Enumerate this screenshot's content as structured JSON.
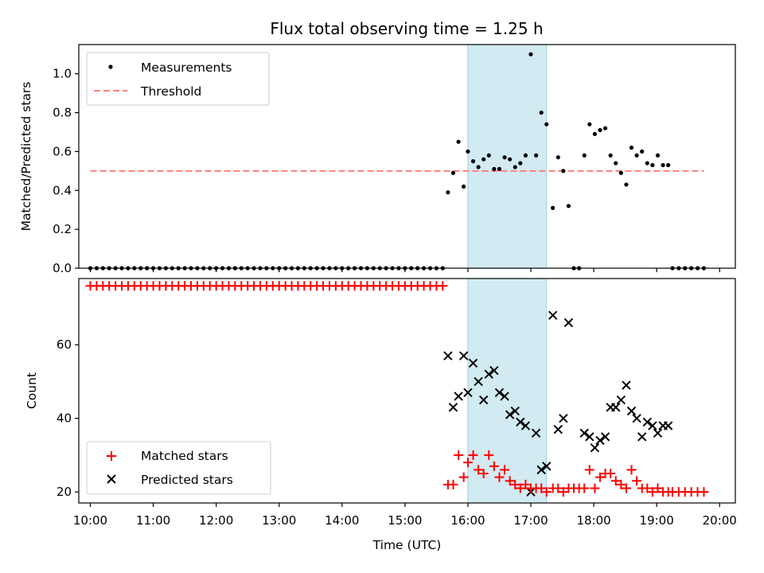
{
  "chart_data": {
    "title": "Flux total observing time = 1.25 h",
    "x_axis": {
      "label": "Time (UTC)",
      "range": [
        "09:49",
        "20:15"
      ],
      "ticks": [
        "10:00",
        "11:00",
        "12:00",
        "13:00",
        "14:00",
        "15:00",
        "16:00",
        "17:00",
        "18:00",
        "19:00",
        "20:00"
      ]
    },
    "shaded_interval": {
      "start": "16:00",
      "end": "17:15",
      "color": "#add8e6"
    },
    "panels": [
      {
        "type": "scatter",
        "ylabel": "Matched/Predicted stars",
        "ylim": [
          0,
          1.15
        ],
        "yticks": [
          "0.0",
          "0.2",
          "0.4",
          "0.6",
          "0.8",
          "1.0"
        ],
        "legend": {
          "position": "upper-left",
          "entries": [
            "Measurements",
            "Threshold"
          ]
        },
        "series": [
          {
            "name": "Measurements",
            "marker": "dot",
            "color": "#000000",
            "zero_times": [
              "10:00",
              "10:06",
              "10:12",
              "10:18",
              "10:24",
              "10:30",
              "10:36",
              "10:42",
              "10:48",
              "10:54",
              "11:00",
              "11:06",
              "11:12",
              "11:18",
              "11:24",
              "11:30",
              "11:36",
              "11:42",
              "11:48",
              "11:54",
              "12:00",
              "12:06",
              "12:12",
              "12:18",
              "12:24",
              "12:30",
              "12:36",
              "12:42",
              "12:48",
              "12:54",
              "13:00",
              "13:06",
              "13:12",
              "13:18",
              "13:24",
              "13:30",
              "13:36",
              "13:42",
              "13:48",
              "13:54",
              "14:00",
              "14:06",
              "14:12",
              "14:18",
              "14:24",
              "14:30",
              "14:36",
              "14:42",
              "14:48",
              "14:54",
              "15:00",
              "15:06",
              "15:12",
              "15:18",
              "15:24",
              "15:30",
              "15:36",
              "17:41",
              "17:46",
              "19:15",
              "19:21",
              "19:27",
              "19:33",
              "19:39",
              "19:45"
            ],
            "points": [
              {
                "x": "15:41",
                "y": 0.39
              },
              {
                "x": "15:46",
                "y": 0.49
              },
              {
                "x": "15:51",
                "y": 0.65
              },
              {
                "x": "15:56",
                "y": 0.42
              },
              {
                "x": "16:00",
                "y": 0.6
              },
              {
                "x": "16:05",
                "y": 0.55
              },
              {
                "x": "16:10",
                "y": 0.52
              },
              {
                "x": "16:15",
                "y": 0.56
              },
              {
                "x": "16:20",
                "y": 0.58
              },
              {
                "x": "16:25",
                "y": 0.51
              },
              {
                "x": "16:30",
                "y": 0.51
              },
              {
                "x": "16:35",
                "y": 0.57
              },
              {
                "x": "16:40",
                "y": 0.56
              },
              {
                "x": "16:45",
                "y": 0.52
              },
              {
                "x": "16:50",
                "y": 0.54
              },
              {
                "x": "16:55",
                "y": 0.58
              },
              {
                "x": "17:00",
                "y": 1.1
              },
              {
                "x": "17:05",
                "y": 0.58
              },
              {
                "x": "17:10",
                "y": 0.8
              },
              {
                "x": "17:15",
                "y": 0.74
              },
              {
                "x": "17:21",
                "y": 0.31
              },
              {
                "x": "17:26",
                "y": 0.57
              },
              {
                "x": "17:31",
                "y": 0.5
              },
              {
                "x": "17:36",
                "y": 0.32
              },
              {
                "x": "17:51",
                "y": 0.58
              },
              {
                "x": "17:56",
                "y": 0.74
              },
              {
                "x": "18:01",
                "y": 0.69
              },
              {
                "x": "18:06",
                "y": 0.71
              },
              {
                "x": "18:11",
                "y": 0.72
              },
              {
                "x": "18:16",
                "y": 0.58
              },
              {
                "x": "18:21",
                "y": 0.54
              },
              {
                "x": "18:26",
                "y": 0.49
              },
              {
                "x": "18:31",
                "y": 0.43
              },
              {
                "x": "18:36",
                "y": 0.62
              },
              {
                "x": "18:41",
                "y": 0.58
              },
              {
                "x": "18:46",
                "y": 0.6
              },
              {
                "x": "18:51",
                "y": 0.54
              },
              {
                "x": "18:56",
                "y": 0.53
              },
              {
                "x": "19:01",
                "y": 0.58
              },
              {
                "x": "19:06",
                "y": 0.53
              },
              {
                "x": "19:11",
                "y": 0.53
              }
            ]
          },
          {
            "name": "Threshold",
            "type": "line",
            "style": "dashed",
            "color": "#ff7f7f",
            "x": [
              "10:00",
              "19:45"
            ],
            "y": [
              0.5,
              0.5
            ]
          }
        ]
      },
      {
        "type": "scatter",
        "ylabel": "Count",
        "ylim": [
          17,
          78
        ],
        "yticks": [
          "20",
          "40",
          "60"
        ],
        "legend": {
          "position": "lower-left",
          "entries": [
            "Matched stars",
            "Predicted stars"
          ]
        },
        "series": [
          {
            "name": "Matched stars",
            "marker": "plus",
            "color": "#ff0000",
            "constant_run": {
              "y": 76,
              "times": [
                "10:00",
                "10:06",
                "10:12",
                "10:18",
                "10:24",
                "10:30",
                "10:36",
                "10:42",
                "10:48",
                "10:54",
                "11:00",
                "11:06",
                "11:12",
                "11:18",
                "11:24",
                "11:30",
                "11:36",
                "11:42",
                "11:48",
                "11:54",
                "12:00",
                "12:06",
                "12:12",
                "12:18",
                "12:24",
                "12:30",
                "12:36",
                "12:42",
                "12:48",
                "12:54",
                "13:00",
                "13:06",
                "13:12",
                "13:18",
                "13:24",
                "13:30",
                "13:36",
                "13:42",
                "13:48",
                "13:54",
                "14:00",
                "14:06",
                "14:12",
                "14:18",
                "14:24",
                "14:30",
                "14:36",
                "14:42",
                "14:48",
                "14:54",
                "15:00",
                "15:06",
                "15:12",
                "15:18",
                "15:24",
                "15:30",
                "15:36"
              ]
            },
            "points": [
              {
                "x": "15:41",
                "y": 22
              },
              {
                "x": "15:46",
                "y": 22
              },
              {
                "x": "15:51",
                "y": 30
              },
              {
                "x": "15:56",
                "y": 24
              },
              {
                "x": "16:00",
                "y": 28
              },
              {
                "x": "16:05",
                "y": 30
              },
              {
                "x": "16:10",
                "y": 26
              },
              {
                "x": "16:15",
                "y": 25
              },
              {
                "x": "16:20",
                "y": 30
              },
              {
                "x": "16:25",
                "y": 27
              },
              {
                "x": "16:30",
                "y": 24
              },
              {
                "x": "16:35",
                "y": 26
              },
              {
                "x": "16:40",
                "y": 23
              },
              {
                "x": "16:45",
                "y": 22
              },
              {
                "x": "16:50",
                "y": 21
              },
              {
                "x": "16:55",
                "y": 22
              },
              {
                "x": "17:00",
                "y": 21
              },
              {
                "x": "17:05",
                "y": 21
              },
              {
                "x": "17:10",
                "y": 21
              },
              {
                "x": "17:15",
                "y": 20
              },
              {
                "x": "17:21",
                "y": 21
              },
              {
                "x": "17:26",
                "y": 21
              },
              {
                "x": "17:31",
                "y": 20
              },
              {
                "x": "17:36",
                "y": 21
              },
              {
                "x": "17:41",
                "y": 21
              },
              {
                "x": "17:46",
                "y": 21
              },
              {
                "x": "17:51",
                "y": 21
              },
              {
                "x": "17:56",
                "y": 26
              },
              {
                "x": "18:01",
                "y": 21
              },
              {
                "x": "18:06",
                "y": 24
              },
              {
                "x": "18:11",
                "y": 25
              },
              {
                "x": "18:16",
                "y": 25
              },
              {
                "x": "18:21",
                "y": 23
              },
              {
                "x": "18:26",
                "y": 22
              },
              {
                "x": "18:31",
                "y": 21
              },
              {
                "x": "18:36",
                "y": 26
              },
              {
                "x": "18:41",
                "y": 23
              },
              {
                "x": "18:46",
                "y": 21
              },
              {
                "x": "18:51",
                "y": 21
              },
              {
                "x": "18:56",
                "y": 20
              },
              {
                "x": "19:01",
                "y": 21
              },
              {
                "x": "19:06",
                "y": 20
              },
              {
                "x": "19:11",
                "y": 20
              },
              {
                "x": "19:15",
                "y": 20
              },
              {
                "x": "19:21",
                "y": 20
              },
              {
                "x": "19:27",
                "y": 20
              },
              {
                "x": "19:33",
                "y": 20
              },
              {
                "x": "19:39",
                "y": 20
              },
              {
                "x": "19:45",
                "y": 20
              }
            ]
          },
          {
            "name": "Predicted stars",
            "marker": "x",
            "color": "#000000",
            "points": [
              {
                "x": "15:41",
                "y": 57
              },
              {
                "x": "15:46",
                "y": 43
              },
              {
                "x": "15:51",
                "y": 46
              },
              {
                "x": "15:56",
                "y": 57
              },
              {
                "x": "16:00",
                "y": 47
              },
              {
                "x": "16:05",
                "y": 55
              },
              {
                "x": "16:10",
                "y": 50
              },
              {
                "x": "16:15",
                "y": 45
              },
              {
                "x": "16:20",
                "y": 52
              },
              {
                "x": "16:25",
                "y": 53
              },
              {
                "x": "16:30",
                "y": 47
              },
              {
                "x": "16:35",
                "y": 46
              },
              {
                "x": "16:40",
                "y": 41
              },
              {
                "x": "16:45",
                "y": 42
              },
              {
                "x": "16:50",
                "y": 39
              },
              {
                "x": "16:55",
                "y": 38
              },
              {
                "x": "17:00",
                "y": 20
              },
              {
                "x": "17:05",
                "y": 36
              },
              {
                "x": "17:10",
                "y": 26
              },
              {
                "x": "17:15",
                "y": 27
              },
              {
                "x": "17:21",
                "y": 68
              },
              {
                "x": "17:26",
                "y": 37
              },
              {
                "x": "17:31",
                "y": 40
              },
              {
                "x": "17:36",
                "y": 66
              },
              {
                "x": "17:51",
                "y": 36
              },
              {
                "x": "17:56",
                "y": 35
              },
              {
                "x": "18:01",
                "y": 32
              },
              {
                "x": "18:06",
                "y": 34
              },
              {
                "x": "18:11",
                "y": 35
              },
              {
                "x": "18:16",
                "y": 43
              },
              {
                "x": "18:21",
                "y": 43
              },
              {
                "x": "18:26",
                "y": 45
              },
              {
                "x": "18:31",
                "y": 49
              },
              {
                "x": "18:36",
                "y": 42
              },
              {
                "x": "18:41",
                "y": 40
              },
              {
                "x": "18:46",
                "y": 35
              },
              {
                "x": "18:51",
                "y": 39
              },
              {
                "x": "18:56",
                "y": 38
              },
              {
                "x": "19:01",
                "y": 36
              },
              {
                "x": "19:06",
                "y": 38
              },
              {
                "x": "19:11",
                "y": 38
              }
            ]
          }
        ]
      }
    ]
  }
}
